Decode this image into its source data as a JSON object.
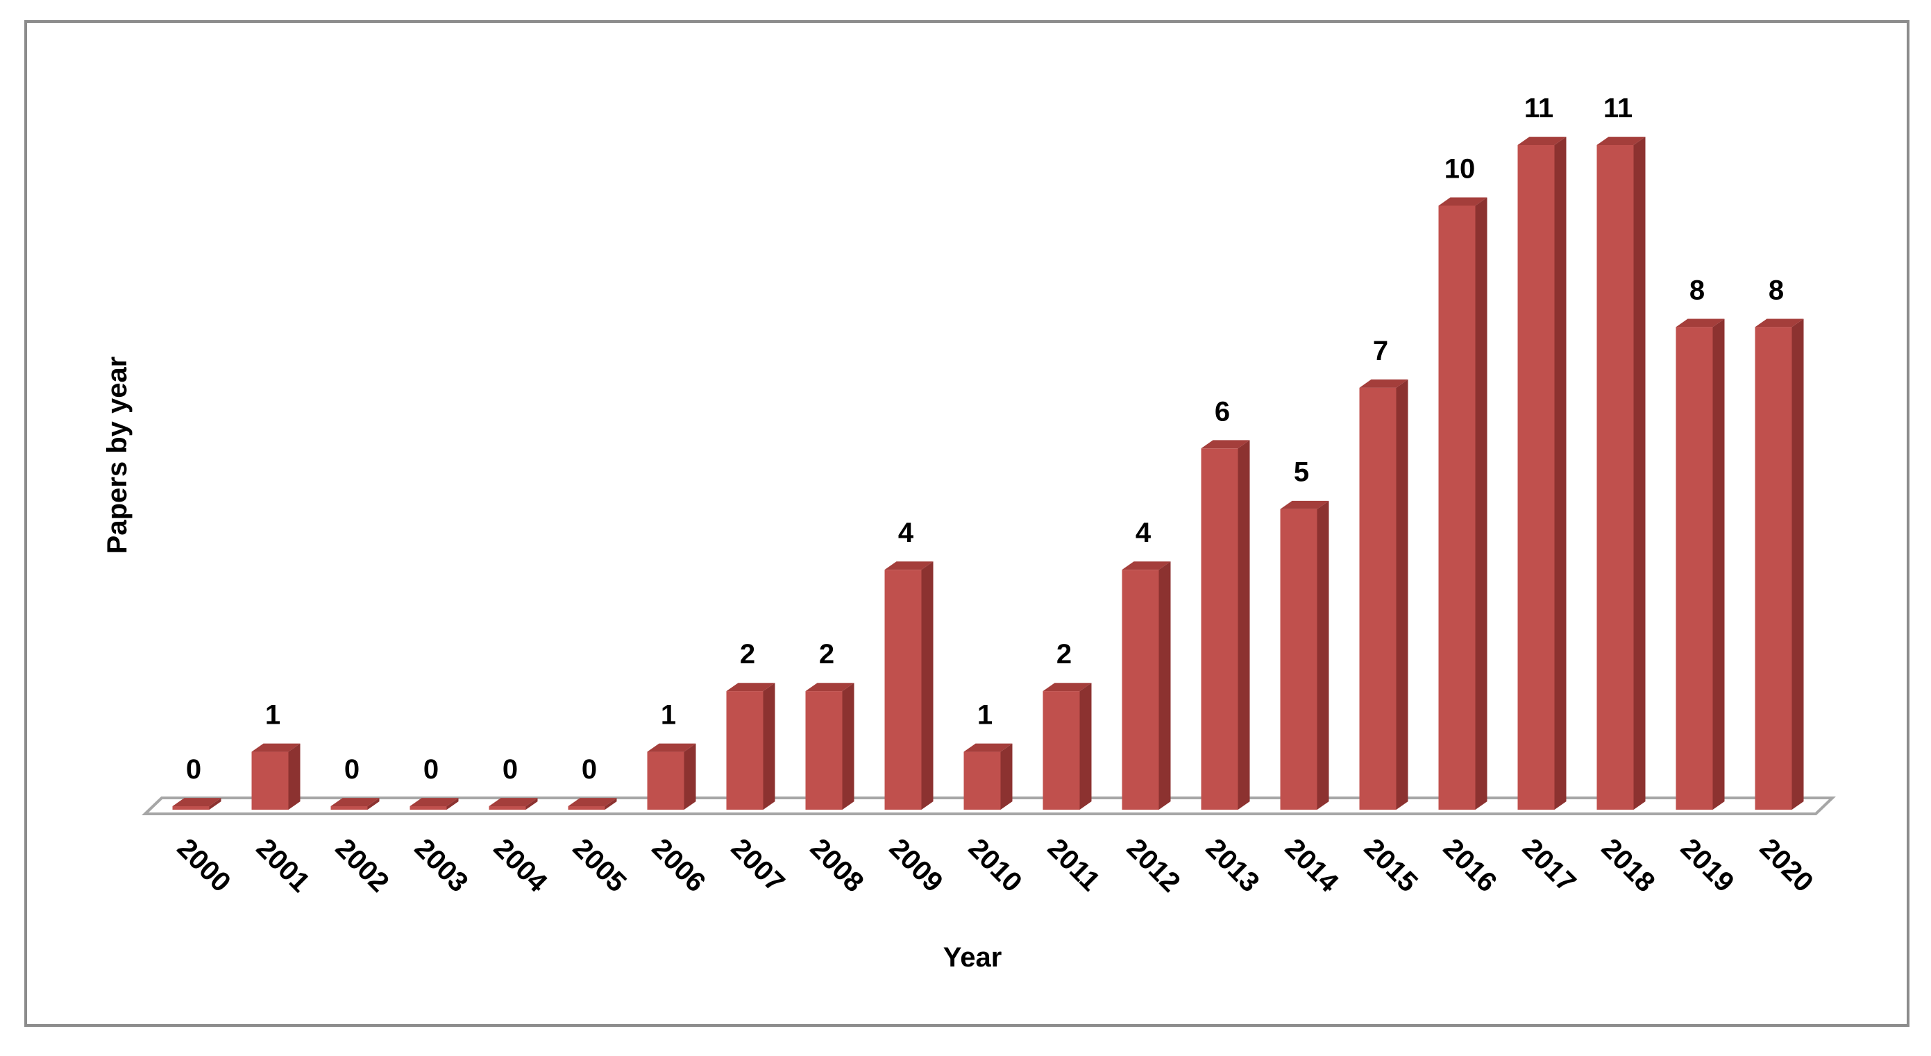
{
  "chart_data": {
    "type": "bar",
    "title": "",
    "xlabel": "Year",
    "ylabel": "Papers by year",
    "categories": [
      "2000",
      "2001",
      "2002",
      "2003",
      "2004",
      "2005",
      "2006",
      "2007",
      "2008",
      "2009",
      "2010",
      "2011",
      "2012",
      "2013",
      "2014",
      "2015",
      "2016",
      "2017",
      "2018",
      "2019",
      "2020"
    ],
    "values": [
      0,
      1,
      0,
      0,
      0,
      0,
      1,
      2,
      2,
      4,
      1,
      2,
      4,
      6,
      5,
      7,
      10,
      11,
      11,
      8,
      8
    ],
    "ylim": [
      0,
      11
    ],
    "grid": false,
    "legend": "none",
    "data_labels": true,
    "style": "3d-column",
    "colors": {
      "bar_front": "#C0504D",
      "bar_side": "#8C3230",
      "bar_top": "#A43E3B",
      "frame": "#8C8C8C",
      "floor": "#A6A6A6"
    }
  }
}
